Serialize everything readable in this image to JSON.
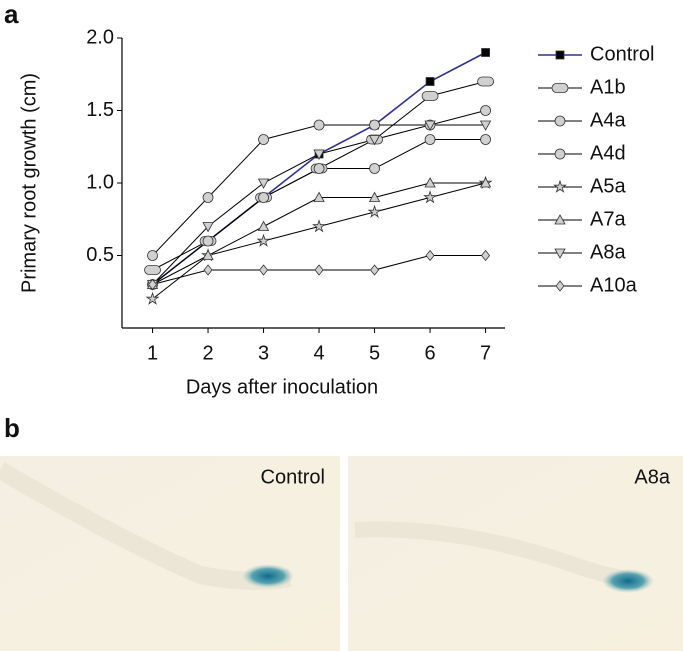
{
  "chart_data": {
    "type": "line",
    "panel_label": "a",
    "x_label": "Days after inoculation",
    "y_label": "Primary root growth (cm)",
    "x": [
      1,
      2,
      3,
      4,
      5,
      6,
      7
    ],
    "xlim": [
      0.45,
      7.35
    ],
    "xticks": [
      1,
      2,
      3,
      4,
      5,
      6,
      7
    ],
    "ylim": [
      0,
      2.0
    ],
    "yticks": [
      0.5,
      {
        "value": 1.0,
        "label": "1.0"
      },
      1.5,
      {
        "value": 2.0,
        "label": "2.0"
      }
    ],
    "grid": false,
    "legend": "right",
    "series": [
      {
        "name": "Control",
        "color": "#2e3192",
        "marker": "square",
        "marker_color": "#000000",
        "values": [
          0.3,
          0.6,
          0.9,
          1.2,
          1.4,
          1.7,
          1.9
        ]
      },
      {
        "name": "A1b",
        "color": "#000000",
        "marker": "ellipse",
        "marker_color": "#d0d0d0",
        "values": [
          0.4,
          0.6,
          0.9,
          1.1,
          1.3,
          1.6,
          1.7
        ]
      },
      {
        "name": "A4a",
        "color": "#000000",
        "marker": "circle",
        "marker_color": "#d0d0d0",
        "values": [
          0.5,
          0.9,
          1.3,
          1.4,
          1.4,
          1.4,
          1.5
        ]
      },
      {
        "name": "A4d",
        "color": "#000000",
        "marker": "circle",
        "marker_color": "#d0d0d0",
        "values": [
          0.3,
          0.6,
          0.9,
          1.1,
          1.1,
          1.3,
          1.3
        ]
      },
      {
        "name": "A5a",
        "color": "#000000",
        "marker": "star",
        "marker_color": "#d0d0d0",
        "values": [
          0.2,
          0.5,
          0.6,
          0.7,
          0.8,
          0.9,
          1.0
        ]
      },
      {
        "name": "A7a",
        "color": "#000000",
        "marker": "triangle-up",
        "marker_color": "#d0d0d0",
        "values": [
          0.3,
          0.5,
          0.7,
          0.9,
          0.9,
          1.0,
          1.0
        ]
      },
      {
        "name": "A8a",
        "color": "#000000",
        "marker": "triangle-down",
        "marker_color": "#d0d0d0",
        "values": [
          0.3,
          0.7,
          1.0,
          1.2,
          1.3,
          1.4,
          1.4
        ]
      },
      {
        "name": "A10a",
        "color": "#000000",
        "marker": "diamond",
        "marker_color": "#d0d0d0",
        "values": [
          0.3,
          0.4,
          0.4,
          0.4,
          0.4,
          0.5,
          0.5
        ]
      }
    ]
  },
  "images": {
    "panel_label": "b",
    "items": [
      {
        "label": "Control"
      },
      {
        "label": "A8a"
      }
    ]
  }
}
